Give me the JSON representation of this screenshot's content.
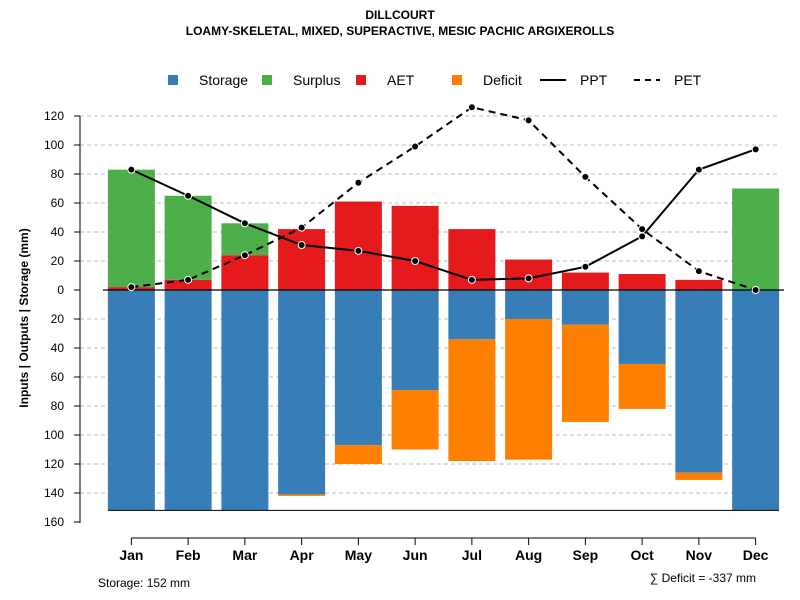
{
  "chart_data": {
    "type": "bar",
    "title": "DILLCOURT",
    "subtitle": "LOAMY-SKELETAL, MIXED, SUPERACTIVE, MESIC PACHIC ARGIXEROLLS",
    "ylabel": "Inputs | Outputs | Storage    (mm)",
    "categories": [
      "Jan",
      "Feb",
      "Mar",
      "Apr",
      "May",
      "Jun",
      "Jul",
      "Aug",
      "Sep",
      "Oct",
      "Nov",
      "Dec"
    ],
    "y_ticks_above": [
      "0",
      "20",
      "40",
      "60",
      "80",
      "100",
      "120"
    ],
    "y_ticks_below": [
      "20",
      "40",
      "60",
      "80",
      "100",
      "120",
      "140",
      "160"
    ],
    "ylim_above": [
      0,
      130
    ],
    "ylim_below": [
      0,
      160
    ],
    "legend": [
      {
        "name": "Storage",
        "kind": "square",
        "color": "#377EB8"
      },
      {
        "name": "Surplus",
        "kind": "square",
        "color": "#4DAF4A"
      },
      {
        "name": "AET",
        "kind": "square",
        "color": "#E41A1C"
      },
      {
        "name": "Deficit",
        "kind": "square",
        "color": "#FF7F00"
      },
      {
        "name": "PPT",
        "kind": "solid-line",
        "color": "#000000"
      },
      {
        "name": "PET",
        "kind": "dashed-line",
        "color": "#000000"
      }
    ],
    "series": [
      {
        "name": "Surplus",
        "position": "above",
        "values": [
          81,
          58,
          22,
          0,
          0,
          0,
          0,
          0,
          0,
          0,
          0,
          70
        ]
      },
      {
        "name": "AET",
        "position": "above",
        "values": [
          2,
          7,
          24,
          42,
          61,
          58,
          42,
          21,
          12,
          11,
          7,
          0
        ]
      },
      {
        "name": "Storage",
        "position": "below",
        "values": [
          152,
          152,
          152,
          141,
          107,
          69,
          34,
          20,
          24,
          51,
          126,
          152
        ]
      },
      {
        "name": "Deficit",
        "position": "below",
        "values": [
          0,
          0,
          0,
          1,
          13,
          41,
          84,
          97,
          67,
          31,
          5,
          0
        ]
      },
      {
        "name": "PPT",
        "type": "line",
        "values": [
          83,
          65,
          46,
          31,
          27,
          20,
          7,
          8,
          16,
          37,
          83,
          97
        ]
      },
      {
        "name": "PET",
        "type": "line",
        "values": [
          2,
          7,
          24,
          43,
          74,
          99,
          126,
          117,
          78,
          42,
          13,
          0
        ]
      }
    ],
    "annotations": {
      "storage": "Storage: 152 mm",
      "deficit": "∑ Deficit = -337 mm"
    }
  }
}
